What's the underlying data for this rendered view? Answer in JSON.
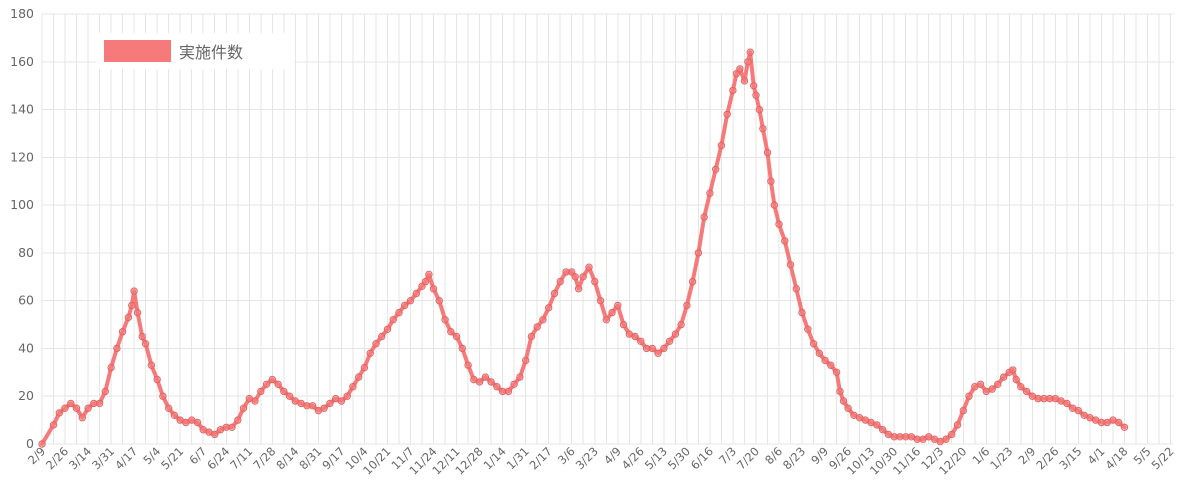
{
  "chart_data": {
    "type": "line",
    "title": "",
    "xlabel": "",
    "ylabel": "",
    "ylim": [
      0,
      180
    ],
    "yticks": [
      0,
      20,
      40,
      60,
      80,
      100,
      120,
      140,
      160,
      180
    ],
    "grid": true,
    "legend_position": "top-left",
    "x_tick_labels": [
      "2/9",
      "2/26",
      "3/14",
      "3/31",
      "4/17",
      "5/4",
      "5/21",
      "6/7",
      "6/24",
      "7/11",
      "7/28",
      "8/14",
      "8/31",
      "9/17",
      "10/4",
      "10/21",
      "11/7",
      "11/24",
      "12/11",
      "12/28",
      "1/14",
      "1/31",
      "2/17",
      "3/6",
      "3/23",
      "4/9",
      "4/26",
      "5/13",
      "5/30",
      "6/16",
      "7/3",
      "7/20",
      "8/6",
      "8/23",
      "9/9",
      "9/26",
      "10/13",
      "10/30",
      "11/16",
      "12/3",
      "12/20",
      "1/6",
      "1/23",
      "2/9",
      "2/26",
      "3/15",
      "4/1",
      "4/18",
      "5/5",
      "5/22"
    ],
    "series": [
      {
        "name": "実施件数",
        "color": "#f77a7a",
        "points": [
          [
            0,
            0
          ],
          [
            1,
            8
          ],
          [
            1.5,
            13
          ],
          [
            2,
            15
          ],
          [
            2.5,
            17
          ],
          [
            3,
            15
          ],
          [
            3.5,
            11
          ],
          [
            4,
            15
          ],
          [
            4.5,
            17
          ],
          [
            5,
            17
          ],
          [
            5.5,
            22
          ],
          [
            6,
            32
          ],
          [
            6.5,
            40
          ],
          [
            7,
            47
          ],
          [
            7.5,
            53
          ],
          [
            7.8,
            58
          ],
          [
            8,
            64
          ],
          [
            8.3,
            55
          ],
          [
            8.7,
            45
          ],
          [
            9,
            42
          ],
          [
            9.5,
            33
          ],
          [
            10,
            27
          ],
          [
            10.5,
            20
          ],
          [
            11,
            15
          ],
          [
            11.5,
            12
          ],
          [
            12,
            10
          ],
          [
            12.5,
            9
          ],
          [
            13,
            10
          ],
          [
            13.5,
            9
          ],
          [
            14,
            6
          ],
          [
            14.5,
            5
          ],
          [
            15,
            4
          ],
          [
            15.5,
            6
          ],
          [
            16,
            7
          ],
          [
            16.5,
            7
          ],
          [
            17,
            10
          ],
          [
            17.5,
            15
          ],
          [
            18,
            19
          ],
          [
            18.5,
            18
          ],
          [
            19,
            22
          ],
          [
            19.5,
            25
          ],
          [
            20,
            27
          ],
          [
            20.5,
            25
          ],
          [
            21,
            22
          ],
          [
            21.5,
            20
          ],
          [
            22,
            18
          ],
          [
            22.5,
            17
          ],
          [
            23,
            16
          ],
          [
            23.5,
            16
          ],
          [
            24,
            14
          ],
          [
            24.5,
            15
          ],
          [
            25,
            17
          ],
          [
            25.5,
            19
          ],
          [
            26,
            18
          ],
          [
            26.5,
            20
          ],
          [
            27,
            24
          ],
          [
            27.5,
            28
          ],
          [
            28,
            32
          ],
          [
            28.5,
            38
          ],
          [
            29,
            42
          ],
          [
            29.5,
            45
          ],
          [
            30,
            48
          ],
          [
            30.5,
            52
          ],
          [
            31,
            55
          ],
          [
            31.5,
            58
          ],
          [
            32,
            60
          ],
          [
            32.5,
            63
          ],
          [
            33,
            66
          ],
          [
            33.3,
            68
          ],
          [
            33.6,
            71
          ],
          [
            34,
            65
          ],
          [
            34.5,
            60
          ],
          [
            35,
            52
          ],
          [
            35.5,
            47
          ],
          [
            36,
            45
          ],
          [
            36.5,
            40
          ],
          [
            37,
            33
          ],
          [
            37.5,
            27
          ],
          [
            38,
            26
          ],
          [
            38.5,
            28
          ],
          [
            39,
            26
          ],
          [
            39.5,
            24
          ],
          [
            40,
            22
          ],
          [
            40.5,
            22
          ],
          [
            41,
            25
          ],
          [
            41.5,
            28
          ],
          [
            42,
            35
          ],
          [
            42.5,
            45
          ],
          [
            43,
            49
          ],
          [
            43.5,
            52
          ],
          [
            44,
            57
          ],
          [
            44.5,
            63
          ],
          [
            45,
            68
          ],
          [
            45.5,
            72
          ],
          [
            46,
            72
          ],
          [
            46.3,
            70
          ],
          [
            46.6,
            65
          ],
          [
            47,
            70
          ],
          [
            47.5,
            74
          ],
          [
            48,
            68
          ],
          [
            48.5,
            60
          ],
          [
            49,
            52
          ],
          [
            49.5,
            55
          ],
          [
            50,
            58
          ],
          [
            50.5,
            50
          ],
          [
            51,
            46
          ],
          [
            51.5,
            45
          ],
          [
            52,
            43
          ],
          [
            52.5,
            40
          ],
          [
            53,
            40
          ],
          [
            53.5,
            38
          ],
          [
            54,
            40
          ],
          [
            54.5,
            43
          ],
          [
            55,
            46
          ],
          [
            55.5,
            50
          ],
          [
            56,
            58
          ],
          [
            56.5,
            68
          ],
          [
            57,
            80
          ],
          [
            57.5,
            95
          ],
          [
            58,
            105
          ],
          [
            58.5,
            115
          ],
          [
            59,
            125
          ],
          [
            59.5,
            138
          ],
          [
            60,
            148
          ],
          [
            60.3,
            155
          ],
          [
            60.6,
            157
          ],
          [
            61,
            152
          ],
          [
            61.3,
            160
          ],
          [
            61.5,
            164
          ],
          [
            61.8,
            150
          ],
          [
            62,
            146
          ],
          [
            62.3,
            140
          ],
          [
            62.6,
            132
          ],
          [
            63,
            122
          ],
          [
            63.3,
            110
          ],
          [
            63.6,
            100
          ],
          [
            64,
            92
          ],
          [
            64.5,
            85
          ],
          [
            65,
            75
          ],
          [
            65.5,
            65
          ],
          [
            66,
            55
          ],
          [
            66.5,
            48
          ],
          [
            67,
            42
          ],
          [
            67.5,
            38
          ],
          [
            68,
            35
          ],
          [
            68.5,
            33
          ],
          [
            69,
            30
          ],
          [
            69.3,
            22
          ],
          [
            69.6,
            18
          ],
          [
            70,
            15
          ],
          [
            70.5,
            12
          ],
          [
            71,
            11
          ],
          [
            71.5,
            10
          ],
          [
            72,
            9
          ],
          [
            72.5,
            8
          ],
          [
            73,
            6
          ],
          [
            73.5,
            4
          ],
          [
            74,
            3
          ],
          [
            74.5,
            3
          ],
          [
            75,
            3
          ],
          [
            75.5,
            3
          ],
          [
            76,
            2
          ],
          [
            76.5,
            2
          ],
          [
            77,
            3
          ],
          [
            77.5,
            2
          ],
          [
            78,
            1
          ],
          [
            78.5,
            2
          ],
          [
            79,
            4
          ],
          [
            79.5,
            8
          ],
          [
            80,
            14
          ],
          [
            80.5,
            20
          ],
          [
            81,
            24
          ],
          [
            81.5,
            25
          ],
          [
            82,
            22
          ],
          [
            82.5,
            23
          ],
          [
            83,
            25
          ],
          [
            83.5,
            28
          ],
          [
            84,
            30
          ],
          [
            84.3,
            31
          ],
          [
            84.6,
            27
          ],
          [
            85,
            24
          ],
          [
            85.5,
            22
          ],
          [
            86,
            20
          ],
          [
            86.5,
            19
          ],
          [
            87,
            19
          ],
          [
            87.5,
            19
          ],
          [
            88,
            19
          ],
          [
            88.5,
            18
          ],
          [
            89,
            17
          ],
          [
            89.5,
            15
          ],
          [
            90,
            14
          ],
          [
            90.5,
            12
          ],
          [
            91,
            11
          ],
          [
            91.5,
            10
          ],
          [
            92,
            9
          ],
          [
            92.5,
            9
          ],
          [
            93,
            10
          ],
          [
            93.5,
            9
          ],
          [
            94,
            7
          ]
        ]
      }
    ]
  }
}
